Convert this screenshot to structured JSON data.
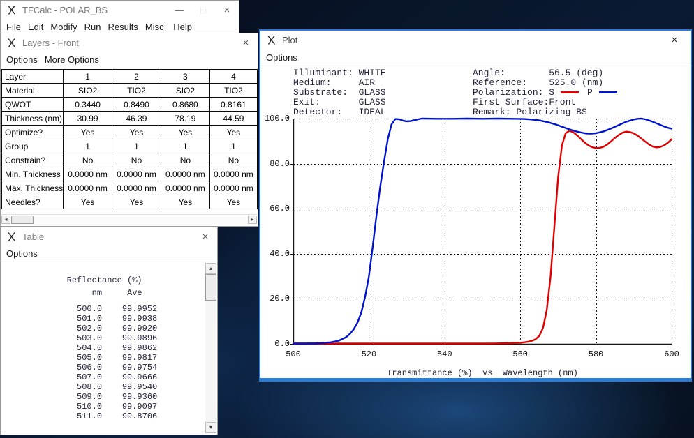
{
  "app": {
    "accent": "#2a7cd4",
    "curve_s_color": "#e00000",
    "curve_p_color": "#0013cc"
  },
  "main_window": {
    "title": "TFCalc - POLAR_BS",
    "menus": [
      "File",
      "Edit",
      "Modify",
      "Run",
      "Results",
      "Misc.",
      "Help"
    ],
    "controls": {
      "minimize": "—",
      "maximize": "□",
      "close": "×"
    }
  },
  "layers_window": {
    "title": "Layers - Front",
    "close": "×",
    "menus": [
      "Options",
      "More Options"
    ],
    "scrollbar": {
      "left": "◂",
      "right": "▸"
    },
    "table_rows": [
      {
        "label": "Layer",
        "values": [
          "1",
          "2",
          "3",
          "4"
        ]
      },
      {
        "label": "Material",
        "values": [
          "SIO2",
          "TIO2",
          "SIO2",
          "TIO2"
        ]
      },
      {
        "label": "QWOT",
        "values": [
          "0.3440",
          "0.8490",
          "0.8680",
          "0.8161"
        ]
      },
      {
        "label": "Thickness (nm)",
        "values": [
          "30.99",
          "46.39",
          "78.19",
          "44.59"
        ]
      },
      {
        "label": "Optimize?",
        "values": [
          "Yes",
          "Yes",
          "Yes",
          "Yes"
        ]
      },
      {
        "label": "Group",
        "values": [
          "1",
          "1",
          "1",
          "1"
        ]
      },
      {
        "label": "Constrain?",
        "values": [
          "No",
          "No",
          "No",
          "No"
        ]
      },
      {
        "label": "Min. Thickness",
        "values": [
          "0.0000 nm",
          "0.0000 nm",
          "0.0000 nm",
          "0.0000 nm"
        ]
      },
      {
        "label": "Max. Thickness",
        "values": [
          "0.0000 nm",
          "0.0000 nm",
          "0.0000 nm",
          "0.0000 nm"
        ]
      },
      {
        "label": "Needles?",
        "values": [
          "Yes",
          "Yes",
          "Yes",
          "Yes"
        ]
      }
    ]
  },
  "table_window": {
    "title": "Table",
    "close": "×",
    "menus": [
      "Options"
    ],
    "scrollbar": {
      "up": "▴",
      "down": "▾"
    },
    "header": "Reflectance (%)",
    "col_headers": [
      "nm",
      "Ave"
    ],
    "rows": [
      [
        "500.0",
        "99.9952"
      ],
      [
        "501.0",
        "99.9938"
      ],
      [
        "502.0",
        "99.9920"
      ],
      [
        "503.0",
        "99.9896"
      ],
      [
        "504.0",
        "99.9862"
      ],
      [
        "505.0",
        "99.9817"
      ],
      [
        "506.0",
        "99.9754"
      ],
      [
        "507.0",
        "99.9666"
      ],
      [
        "508.0",
        "99.9540"
      ],
      [
        "509.0",
        "99.9360"
      ],
      [
        "510.0",
        "99.9097"
      ],
      [
        "511.0",
        "99.8706"
      ]
    ]
  },
  "plot_window": {
    "title": "Plot",
    "close": "×",
    "menus": [
      "Options"
    ],
    "info_left": [
      {
        "label": "Illuminant:",
        "value": "WHITE",
        "pad": 12
      },
      {
        "label": "Medium:",
        "value": "AIR",
        "pad": 12
      },
      {
        "label": "Substrate:",
        "value": "GLASS",
        "pad": 12
      },
      {
        "label": "Exit:",
        "value": "GLASS",
        "pad": 12
      },
      {
        "label": "Detector:",
        "value": "IDEAL",
        "pad": 12
      }
    ],
    "info_right": [
      {
        "label": "Angle:",
        "value": "56.5 (deg)",
        "pad": 14
      },
      {
        "label": "Reference:",
        "value": "525.0 (nm)",
        "pad": 14
      },
      {
        "label": "Polarization:",
        "legend": {
          "s": "S",
          "p": "P"
        },
        "pad": 14
      },
      {
        "label": "First Surface:",
        "value": "Front",
        "pad": 14
      },
      {
        "label": "Remark:",
        "value": "Polarizing BS",
        "pad": 8
      }
    ]
  },
  "chart_data": {
    "type": "line",
    "title": "Transmittance (%) vs Wavelength (nm)",
    "caption": "Transmittance (%)  vs  Wavelength (nm)",
    "xlabel": "Wavelength (nm)",
    "ylabel": "Transmittance (%)",
    "xlim": [
      500,
      600
    ],
    "ylim": [
      0,
      100
    ],
    "x_ticks": [
      500,
      520,
      540,
      560,
      580,
      600
    ],
    "y_ticks": [
      0,
      20,
      40,
      60,
      80,
      100
    ],
    "grid": "dashed",
    "legend_position": "header",
    "series": [
      {
        "name": "P",
        "color": "#0013cc",
        "points": [
          [
            500,
            0.2
          ],
          [
            503,
            0.2
          ],
          [
            506,
            0.25
          ],
          [
            508,
            0.4
          ],
          [
            510,
            0.7
          ],
          [
            512,
            1.4
          ],
          [
            514,
            3
          ],
          [
            515,
            4.5
          ],
          [
            516,
            6.5
          ],
          [
            517,
            9.5
          ],
          [
            518,
            14
          ],
          [
            519,
            21
          ],
          [
            520,
            30
          ],
          [
            521,
            43
          ],
          [
            522,
            57
          ],
          [
            523,
            70
          ],
          [
            524,
            81
          ],
          [
            525,
            91
          ],
          [
            526,
            97.5
          ],
          [
            527,
            99.8
          ],
          [
            528,
            99.7
          ],
          [
            529,
            99.1
          ],
          [
            530,
            98.8
          ],
          [
            531,
            98.9
          ],
          [
            532,
            99.3
          ],
          [
            533,
            99.7
          ],
          [
            534,
            100
          ],
          [
            538,
            99.9
          ],
          [
            542,
            99.9
          ],
          [
            546,
            100
          ],
          [
            550,
            99.9
          ],
          [
            554,
            100
          ],
          [
            558,
            99.9
          ],
          [
            561,
            99.8
          ],
          [
            563,
            99.6
          ],
          [
            565,
            99.2
          ],
          [
            567,
            98.5
          ],
          [
            569,
            97.6
          ],
          [
            571,
            96.4
          ],
          [
            573,
            95.2
          ],
          [
            575,
            94.2
          ],
          [
            577,
            93.5
          ],
          [
            578,
            93.3
          ],
          [
            579,
            93.3
          ],
          [
            580,
            93.5
          ],
          [
            582,
            94.3
          ],
          [
            584,
            95.6
          ],
          [
            586,
            97.1
          ],
          [
            588,
            98.6
          ],
          [
            590,
            99.6
          ],
          [
            591,
            99.9
          ],
          [
            592,
            100
          ],
          [
            593,
            99.7
          ],
          [
            594,
            99.2
          ],
          [
            595,
            98.6
          ],
          [
            596,
            97.9
          ],
          [
            597,
            97.2
          ],
          [
            598,
            96.5
          ],
          [
            599,
            95.9
          ],
          [
            600,
            95.5
          ]
        ]
      },
      {
        "name": "S",
        "color": "#e00000",
        "points": [
          [
            500,
            0.15
          ],
          [
            510,
            0.15
          ],
          [
            520,
            0.15
          ],
          [
            530,
            0.15
          ],
          [
            540,
            0.15
          ],
          [
            548,
            0.15
          ],
          [
            553,
            0.2
          ],
          [
            557,
            0.3
          ],
          [
            560,
            0.5
          ],
          [
            562,
            0.9
          ],
          [
            563,
            1.3
          ],
          [
            564,
            2
          ],
          [
            565,
            3.5
          ],
          [
            566,
            7
          ],
          [
            567,
            15
          ],
          [
            568,
            30
          ],
          [
            569,
            52
          ],
          [
            570,
            74
          ],
          [
            571,
            88
          ],
          [
            572,
            93.5
          ],
          [
            573,
            94.6
          ],
          [
            574,
            93.9
          ],
          [
            575,
            92.6
          ],
          [
            576,
            91
          ],
          [
            577,
            89.4
          ],
          [
            578,
            88.1
          ],
          [
            579,
            87.3
          ],
          [
            580,
            86.9
          ],
          [
            581,
            87
          ],
          [
            582,
            87.5
          ],
          [
            583,
            88.5
          ],
          [
            584,
            89.9
          ],
          [
            585,
            91.4
          ],
          [
            586,
            92.7
          ],
          [
            587,
            93.7
          ],
          [
            588,
            94.2
          ],
          [
            589,
            94
          ],
          [
            590,
            93.4
          ],
          [
            591,
            92.4
          ],
          [
            592,
            91.1
          ],
          [
            593,
            89.8
          ],
          [
            594,
            88.5
          ],
          [
            595,
            87.6
          ],
          [
            596,
            87.2
          ],
          [
            597,
            87.4
          ],
          [
            598,
            88.1
          ],
          [
            599,
            89.3
          ],
          [
            600,
            90.8
          ]
        ]
      }
    ]
  }
}
